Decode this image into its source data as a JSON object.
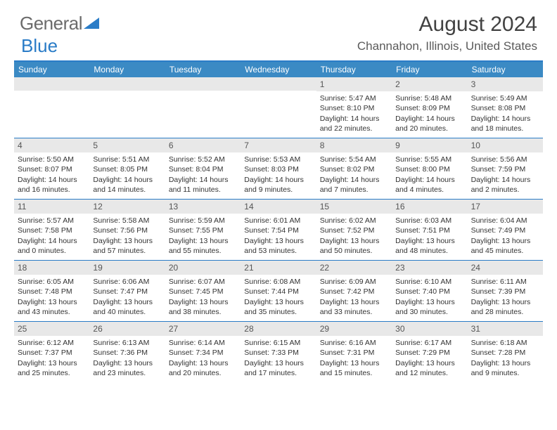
{
  "logo": {
    "part1": "General",
    "part2": "Blue"
  },
  "header": {
    "month_title": "August 2024",
    "location": "Channahon, Illinois, United States"
  },
  "colors": {
    "accent": "#2a7cc7",
    "header_bar": "#3b8ac4",
    "daynum_bg": "#e8e8e8",
    "text": "#333333",
    "title_text": "#424242",
    "logo_gray": "#6b6b6b"
  },
  "weekdays": [
    "Sunday",
    "Monday",
    "Tuesday",
    "Wednesday",
    "Thursday",
    "Friday",
    "Saturday"
  ],
  "weeks": [
    [
      null,
      null,
      null,
      null,
      {
        "n": "1",
        "sr": "5:47 AM",
        "ss": "8:10 PM",
        "dl1": "Daylight: 14 hours",
        "dl2": "and 22 minutes."
      },
      {
        "n": "2",
        "sr": "5:48 AM",
        "ss": "8:09 PM",
        "dl1": "Daylight: 14 hours",
        "dl2": "and 20 minutes."
      },
      {
        "n": "3",
        "sr": "5:49 AM",
        "ss": "8:08 PM",
        "dl1": "Daylight: 14 hours",
        "dl2": "and 18 minutes."
      }
    ],
    [
      {
        "n": "4",
        "sr": "5:50 AM",
        "ss": "8:07 PM",
        "dl1": "Daylight: 14 hours",
        "dl2": "and 16 minutes."
      },
      {
        "n": "5",
        "sr": "5:51 AM",
        "ss": "8:05 PM",
        "dl1": "Daylight: 14 hours",
        "dl2": "and 14 minutes."
      },
      {
        "n": "6",
        "sr": "5:52 AM",
        "ss": "8:04 PM",
        "dl1": "Daylight: 14 hours",
        "dl2": "and 11 minutes."
      },
      {
        "n": "7",
        "sr": "5:53 AM",
        "ss": "8:03 PM",
        "dl1": "Daylight: 14 hours",
        "dl2": "and 9 minutes."
      },
      {
        "n": "8",
        "sr": "5:54 AM",
        "ss": "8:02 PM",
        "dl1": "Daylight: 14 hours",
        "dl2": "and 7 minutes."
      },
      {
        "n": "9",
        "sr": "5:55 AM",
        "ss": "8:00 PM",
        "dl1": "Daylight: 14 hours",
        "dl2": "and 4 minutes."
      },
      {
        "n": "10",
        "sr": "5:56 AM",
        "ss": "7:59 PM",
        "dl1": "Daylight: 14 hours",
        "dl2": "and 2 minutes."
      }
    ],
    [
      {
        "n": "11",
        "sr": "5:57 AM",
        "ss": "7:58 PM",
        "dl1": "Daylight: 14 hours",
        "dl2": "and 0 minutes."
      },
      {
        "n": "12",
        "sr": "5:58 AM",
        "ss": "7:56 PM",
        "dl1": "Daylight: 13 hours",
        "dl2": "and 57 minutes."
      },
      {
        "n": "13",
        "sr": "5:59 AM",
        "ss": "7:55 PM",
        "dl1": "Daylight: 13 hours",
        "dl2": "and 55 minutes."
      },
      {
        "n": "14",
        "sr": "6:01 AM",
        "ss": "7:54 PM",
        "dl1": "Daylight: 13 hours",
        "dl2": "and 53 minutes."
      },
      {
        "n": "15",
        "sr": "6:02 AM",
        "ss": "7:52 PM",
        "dl1": "Daylight: 13 hours",
        "dl2": "and 50 minutes."
      },
      {
        "n": "16",
        "sr": "6:03 AM",
        "ss": "7:51 PM",
        "dl1": "Daylight: 13 hours",
        "dl2": "and 48 minutes."
      },
      {
        "n": "17",
        "sr": "6:04 AM",
        "ss": "7:49 PM",
        "dl1": "Daylight: 13 hours",
        "dl2": "and 45 minutes."
      }
    ],
    [
      {
        "n": "18",
        "sr": "6:05 AM",
        "ss": "7:48 PM",
        "dl1": "Daylight: 13 hours",
        "dl2": "and 43 minutes."
      },
      {
        "n": "19",
        "sr": "6:06 AM",
        "ss": "7:47 PM",
        "dl1": "Daylight: 13 hours",
        "dl2": "and 40 minutes."
      },
      {
        "n": "20",
        "sr": "6:07 AM",
        "ss": "7:45 PM",
        "dl1": "Daylight: 13 hours",
        "dl2": "and 38 minutes."
      },
      {
        "n": "21",
        "sr": "6:08 AM",
        "ss": "7:44 PM",
        "dl1": "Daylight: 13 hours",
        "dl2": "and 35 minutes."
      },
      {
        "n": "22",
        "sr": "6:09 AM",
        "ss": "7:42 PM",
        "dl1": "Daylight: 13 hours",
        "dl2": "and 33 minutes."
      },
      {
        "n": "23",
        "sr": "6:10 AM",
        "ss": "7:40 PM",
        "dl1": "Daylight: 13 hours",
        "dl2": "and 30 minutes."
      },
      {
        "n": "24",
        "sr": "6:11 AM",
        "ss": "7:39 PM",
        "dl1": "Daylight: 13 hours",
        "dl2": "and 28 minutes."
      }
    ],
    [
      {
        "n": "25",
        "sr": "6:12 AM",
        "ss": "7:37 PM",
        "dl1": "Daylight: 13 hours",
        "dl2": "and 25 minutes."
      },
      {
        "n": "26",
        "sr": "6:13 AM",
        "ss": "7:36 PM",
        "dl1": "Daylight: 13 hours",
        "dl2": "and 23 minutes."
      },
      {
        "n": "27",
        "sr": "6:14 AM",
        "ss": "7:34 PM",
        "dl1": "Daylight: 13 hours",
        "dl2": "and 20 minutes."
      },
      {
        "n": "28",
        "sr": "6:15 AM",
        "ss": "7:33 PM",
        "dl1": "Daylight: 13 hours",
        "dl2": "and 17 minutes."
      },
      {
        "n": "29",
        "sr": "6:16 AM",
        "ss": "7:31 PM",
        "dl1": "Daylight: 13 hours",
        "dl2": "and 15 minutes."
      },
      {
        "n": "30",
        "sr": "6:17 AM",
        "ss": "7:29 PM",
        "dl1": "Daylight: 13 hours",
        "dl2": "and 12 minutes."
      },
      {
        "n": "31",
        "sr": "6:18 AM",
        "ss": "7:28 PM",
        "dl1": "Daylight: 13 hours",
        "dl2": "and 9 minutes."
      }
    ]
  ],
  "labels": {
    "sunrise_prefix": "Sunrise: ",
    "sunset_prefix": "Sunset: "
  }
}
